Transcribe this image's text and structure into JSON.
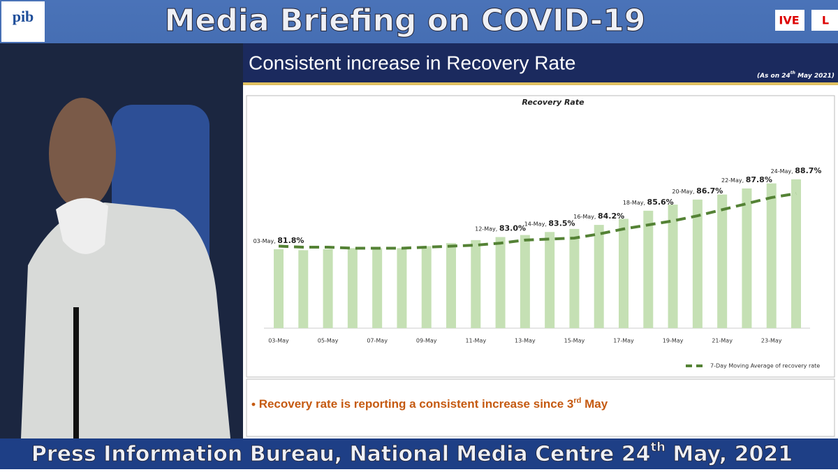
{
  "logo": "pib",
  "header": {
    "title": "Media Briefing on COVID-19",
    "badges": [
      "IVE",
      "L"
    ]
  },
  "slide": {
    "title": "Consistent increase in Recovery Rate",
    "note": [
      "(As on 24",
      "th",
      " May 2021)"
    ],
    "bullet": [
      "Recovery rate is reporting a consistent increase since 3",
      "rd",
      " May"
    ]
  },
  "footer": [
    "Press Information Bureau, National Media Centre  24",
    "th",
    " May, 2021"
  ],
  "chart_data": {
    "type": "bar",
    "title": "Recovery Rate",
    "categories": [
      "03-May",
      null,
      "05-May",
      null,
      "07-May",
      null,
      "09-May",
      null,
      "11-May",
      "12-May",
      "13-May",
      "14-May",
      "15-May",
      "16-May",
      "17-May",
      "18-May",
      "19-May",
      "20-May",
      "21-May",
      "22-May",
      "23-May",
      "24-May"
    ],
    "values": [
      81.8,
      81.7,
      81.8,
      81.9,
      81.9,
      81.9,
      82.1,
      82.4,
      82.7,
      83.0,
      83.2,
      83.5,
      83.8,
      84.2,
      84.8,
      85.6,
      86.2,
      86.7,
      87.2,
      87.8,
      88.3,
      88.7
    ],
    "value_labels": [
      "81.8%",
      null,
      null,
      null,
      null,
      null,
      null,
      null,
      null,
      "83.0%",
      null,
      "83.5%",
      null,
      "84.2%",
      null,
      "85.6%",
      null,
      "86.7%",
      null,
      "87.8%",
      null,
      "88.7%"
    ],
    "color": "#c5e0b4",
    "moving_average": {
      "name": "7-Day Moving Average of recovery rate",
      "color": "#548235",
      "values": [
        82.1,
        82.0,
        82.0,
        81.9,
        81.9,
        81.9,
        82.0,
        82.1,
        82.2,
        82.4,
        82.7,
        82.8,
        82.9,
        83.3,
        83.8,
        84.2,
        84.6,
        85.1,
        85.7,
        86.3,
        86.9,
        87.3
      ]
    },
    "ylim": [
      74,
      90
    ]
  }
}
